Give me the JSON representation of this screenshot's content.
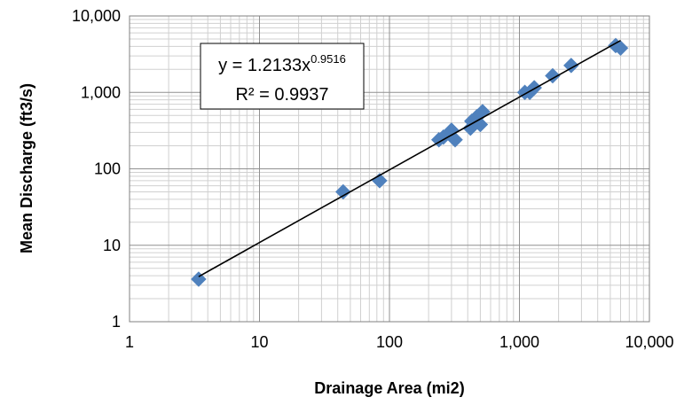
{
  "chart_data": {
    "type": "scatter",
    "x_scale": "log",
    "y_scale": "log",
    "xlabel": "Drainage Area (mi2)",
    "ylabel": "Mean Discharge (ft3/s)",
    "xlim": [
      1,
      10000
    ],
    "ylim": [
      1,
      10000
    ],
    "x_ticks": [
      "1",
      "10",
      "100",
      "1,000",
      "10,000"
    ],
    "y_ticks": [
      "1",
      "10",
      "100",
      "1,000",
      "10,000"
    ],
    "grid": "major and minor",
    "marker": "diamond",
    "marker_color": "#4F81BD",
    "trendline_color": "#000000",
    "points": [
      {
        "x": 3.4,
        "y": 3.6
      },
      {
        "x": 44,
        "y": 50
      },
      {
        "x": 84,
        "y": 70
      },
      {
        "x": 240,
        "y": 240
      },
      {
        "x": 260,
        "y": 260
      },
      {
        "x": 300,
        "y": 320
      },
      {
        "x": 320,
        "y": 240
      },
      {
        "x": 420,
        "y": 340
      },
      {
        "x": 430,
        "y": 420
      },
      {
        "x": 470,
        "y": 480
      },
      {
        "x": 500,
        "y": 380
      },
      {
        "x": 520,
        "y": 560
      },
      {
        "x": 1100,
        "y": 1000
      },
      {
        "x": 1200,
        "y": 1000
      },
      {
        "x": 1300,
        "y": 1150
      },
      {
        "x": 1800,
        "y": 1650
      },
      {
        "x": 2500,
        "y": 2250
      },
      {
        "x": 5500,
        "y": 4100
      },
      {
        "x": 6000,
        "y": 3800
      }
    ],
    "trendline": {
      "type": "power",
      "coefficient": 1.2133,
      "exponent": 0.9516,
      "x_range": [
        3.4,
        6000
      ]
    },
    "equation": {
      "prefix": "y = 1.2133x",
      "exponent": "0.9516",
      "r2": "R² = 0.9937"
    }
  }
}
